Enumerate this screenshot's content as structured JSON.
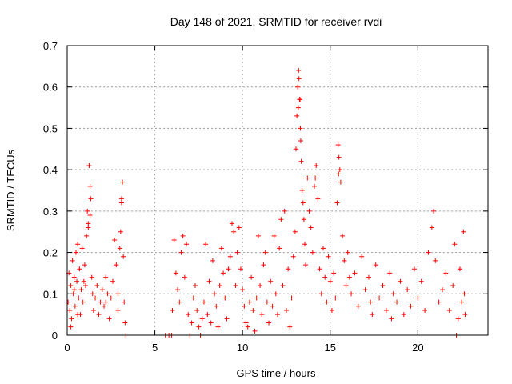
{
  "chart_data": {
    "type": "scatter",
    "title": "Day 148 of 2021, SRMTID for receiver rvdi",
    "xlabel": "GPS time / hours",
    "ylabel": "SRMTID / TECUs",
    "xlim": [
      0,
      24
    ],
    "ylim": [
      0,
      0.7
    ],
    "xticks": [
      0,
      5,
      10,
      15,
      20
    ],
    "xtick_labels": [
      "0",
      "5",
      "10",
      "15",
      "20"
    ],
    "yticks": [
      0,
      0.1,
      0.2,
      0.3,
      0.4,
      0.5,
      0.6,
      0.7
    ],
    "ytick_labels": [
      "0",
      "0.1",
      "0.2",
      "0.3",
      "0.4",
      "0.5",
      "0.6",
      "0.7"
    ],
    "grid": true,
    "marker": "+",
    "series": [
      {
        "name": "SRMTID",
        "color": "#ff0000",
        "points": [
          [
            0.05,
            0.08
          ],
          [
            0.1,
            0.15
          ],
          [
            0.15,
            0.06
          ],
          [
            0.2,
            0.12
          ],
          [
            0.25,
            0.04
          ],
          [
            0.3,
            0.18
          ],
          [
            0.35,
            0.1
          ],
          [
            0.4,
            0.14
          ],
          [
            0.45,
            0.07
          ],
          [
            0.5,
            0.2
          ],
          [
            0.55,
            0.13
          ],
          [
            0.6,
            0.22
          ],
          [
            0.65,
            0.09
          ],
          [
            0.7,
            0.16
          ],
          [
            0.75,
            0.05
          ],
          [
            0.8,
            0.11
          ],
          [
            0.85,
            0.21
          ],
          [
            0.9,
            0.08
          ],
          [
            0.95,
            0.13
          ],
          [
            1.0,
            0.17
          ],
          [
            1.05,
            0.12
          ],
          [
            1.1,
            0.24
          ],
          [
            1.15,
            0.3
          ],
          [
            1.2,
            0.27
          ],
          [
            1.25,
            0.41
          ],
          [
            1.3,
            0.36
          ],
          [
            1.35,
            0.33
          ],
          [
            1.4,
            0.14
          ],
          [
            1.45,
            0.1
          ],
          [
            1.5,
            0.06
          ],
          [
            1.6,
            0.09
          ],
          [
            1.7,
            0.12
          ],
          [
            1.8,
            0.05
          ],
          [
            1.9,
            0.08
          ],
          [
            2.0,
            0.11
          ],
          [
            2.1,
            0.07
          ],
          [
            2.2,
            0.14
          ],
          [
            2.3,
            0.1
          ],
          [
            2.4,
            0.04
          ],
          [
            2.5,
            0.09
          ],
          [
            2.6,
            0.13
          ],
          [
            2.7,
            0.23
          ],
          [
            2.8,
            0.17
          ],
          [
            2.9,
            0.06
          ],
          [
            3.0,
            0.21
          ],
          [
            3.05,
            0.25
          ],
          [
            3.1,
            0.33
          ],
          [
            3.15,
            0.37
          ],
          [
            3.2,
            0.19
          ],
          [
            3.25,
            0.08
          ],
          [
            3.3,
            0.03
          ],
          [
            3.35,
            0.0
          ],
          [
            0.2,
            0.02
          ],
          [
            0.6,
            0.05
          ],
          [
            1.2,
            0.26
          ],
          [
            1.3,
            0.29
          ],
          [
            2.2,
            0.08
          ],
          [
            2.9,
            0.1
          ],
          [
            3.1,
            0.32
          ],
          [
            0.4,
            0.11
          ],
          [
            5.6,
            0.0
          ],
          [
            5.8,
            0.0
          ],
          [
            5.95,
            0.0
          ],
          [
            6.0,
            0.06
          ],
          [
            6.1,
            0.23
          ],
          [
            6.2,
            0.15
          ],
          [
            6.3,
            0.11
          ],
          [
            6.4,
            0.08
          ],
          [
            6.5,
            0.2
          ],
          [
            6.6,
            0.24
          ],
          [
            6.7,
            0.14
          ],
          [
            6.8,
            0.22
          ],
          [
            6.9,
            0.05
          ],
          [
            7.0,
            0.0
          ],
          [
            7.1,
            0.03
          ],
          [
            7.2,
            0.09
          ],
          [
            7.3,
            0.12
          ],
          [
            7.4,
            0.06
          ],
          [
            7.5,
            0.02
          ],
          [
            7.6,
            0.0
          ],
          [
            7.7,
            0.04
          ],
          [
            7.8,
            0.08
          ],
          [
            7.9,
            0.22
          ],
          [
            8.0,
            0.05
          ],
          [
            8.1,
            0.13
          ],
          [
            8.2,
            0.03
          ],
          [
            8.3,
            0.18
          ],
          [
            8.4,
            0.1
          ],
          [
            8.5,
            0.07
          ],
          [
            8.6,
            0.02
          ],
          [
            8.7,
            0.12
          ],
          [
            8.8,
            0.21
          ],
          [
            8.9,
            0.15
          ],
          [
            9.0,
            0.09
          ],
          [
            9.1,
            0.04
          ],
          [
            9.2,
            0.16
          ],
          [
            9.3,
            0.19
          ],
          [
            9.4,
            0.27
          ],
          [
            9.5,
            0.25
          ],
          [
            9.6,
            0.12
          ],
          [
            9.7,
            0.2
          ],
          [
            9.8,
            0.26
          ],
          [
            9.9,
            0.16
          ],
          [
            10.0,
            0.11
          ],
          [
            10.1,
            0.07
          ],
          [
            10.2,
            0.03
          ],
          [
            10.3,
            0.02
          ],
          [
            10.4,
            0.08
          ],
          [
            10.5,
            0.14
          ],
          [
            10.6,
            0.06
          ],
          [
            10.7,
            0.01
          ],
          [
            10.8,
            0.09
          ],
          [
            10.9,
            0.24
          ],
          [
            11.0,
            0.12
          ],
          [
            11.1,
            0.05
          ],
          [
            11.2,
            0.17
          ],
          [
            11.3,
            0.2
          ],
          [
            11.4,
            0.08
          ],
          [
            11.5,
            0.03
          ],
          [
            11.6,
            0.13
          ],
          [
            11.7,
            0.07
          ],
          [
            11.8,
            0.24
          ],
          [
            11.9,
            0.1
          ],
          [
            12.0,
            0.05
          ],
          [
            12.1,
            0.21
          ],
          [
            12.2,
            0.28
          ],
          [
            12.3,
            0.12
          ],
          [
            12.4,
            0.3
          ],
          [
            12.5,
            0.06
          ],
          [
            12.6,
            0.16
          ],
          [
            12.7,
            0.02
          ],
          [
            12.8,
            0.09
          ],
          [
            12.9,
            0.19
          ],
          [
            13.0,
            0.25
          ],
          [
            13.05,
            0.45
          ],
          [
            13.1,
            0.53
          ],
          [
            13.15,
            0.6
          ],
          [
            13.2,
            0.64
          ],
          [
            13.25,
            0.57
          ],
          [
            13.3,
            0.5
          ],
          [
            13.35,
            0.42
          ],
          [
            13.4,
            0.35
          ],
          [
            13.45,
            0.32
          ],
          [
            13.5,
            0.28
          ],
          [
            13.55,
            0.22
          ],
          [
            13.6,
            0.17
          ],
          [
            13.7,
            0.38
          ],
          [
            13.8,
            0.3
          ],
          [
            13.9,
            0.26
          ],
          [
            14.0,
            0.2
          ],
          [
            14.1,
            0.36
          ],
          [
            14.2,
            0.41
          ],
          [
            14.3,
            0.33
          ],
          [
            14.4,
            0.16
          ],
          [
            14.5,
            0.1
          ],
          [
            14.6,
            0.21
          ],
          [
            14.7,
            0.14
          ],
          [
            14.8,
            0.08
          ],
          [
            14.9,
            0.19
          ],
          [
            15.0,
            0.13
          ],
          [
            15.1,
            0.06
          ],
          [
            15.2,
            0.15
          ],
          [
            15.3,
            0.09
          ],
          [
            15.4,
            0.32
          ],
          [
            15.45,
            0.46
          ],
          [
            15.5,
            0.43
          ],
          [
            15.55,
            0.4
          ],
          [
            15.6,
            0.37
          ],
          [
            15.7,
            0.24
          ],
          [
            15.8,
            0.18
          ],
          [
            15.9,
            0.12
          ],
          [
            16.0,
            0.2
          ],
          [
            16.2,
            0.1
          ],
          [
            16.4,
            0.15
          ],
          [
            16.6,
            0.07
          ],
          [
            16.8,
            0.19
          ],
          [
            17.0,
            0.11
          ],
          [
            17.2,
            0.14
          ],
          [
            17.4,
            0.05
          ],
          [
            17.6,
            0.17
          ],
          [
            17.8,
            0.09
          ],
          [
            18.0,
            0.12
          ],
          [
            18.2,
            0.06
          ],
          [
            18.4,
            0.15
          ],
          [
            18.6,
            0.1
          ],
          [
            18.8,
            0.08
          ],
          [
            19.0,
            0.13
          ],
          [
            19.2,
            0.05
          ],
          [
            19.4,
            0.11
          ],
          [
            19.6,
            0.07
          ],
          [
            19.8,
            0.16
          ],
          [
            20.0,
            0.09
          ],
          [
            20.2,
            0.13
          ],
          [
            20.4,
            0.06
          ],
          [
            20.6,
            0.2
          ],
          [
            20.8,
            0.26
          ],
          [
            20.9,
            0.3
          ],
          [
            21.0,
            0.18
          ],
          [
            21.2,
            0.08
          ],
          [
            21.4,
            0.11
          ],
          [
            21.6,
            0.15
          ],
          [
            21.8,
            0.06
          ],
          [
            22.0,
            0.12
          ],
          [
            22.1,
            0.22
          ],
          [
            22.2,
            0.0
          ],
          [
            22.3,
            0.04
          ],
          [
            22.4,
            0.16
          ],
          [
            22.5,
            0.08
          ],
          [
            22.6,
            0.25
          ],
          [
            22.65,
            0.1
          ],
          [
            22.7,
            0.05
          ],
          [
            13.22,
            0.62
          ],
          [
            13.28,
            0.57
          ],
          [
            13.18,
            0.55
          ],
          [
            13.32,
            0.47
          ],
          [
            14.15,
            0.38
          ],
          [
            15.48,
            0.39
          ],
          [
            16.1,
            0.14
          ],
          [
            17.3,
            0.08
          ],
          [
            18.5,
            0.04
          ]
        ]
      }
    ]
  }
}
